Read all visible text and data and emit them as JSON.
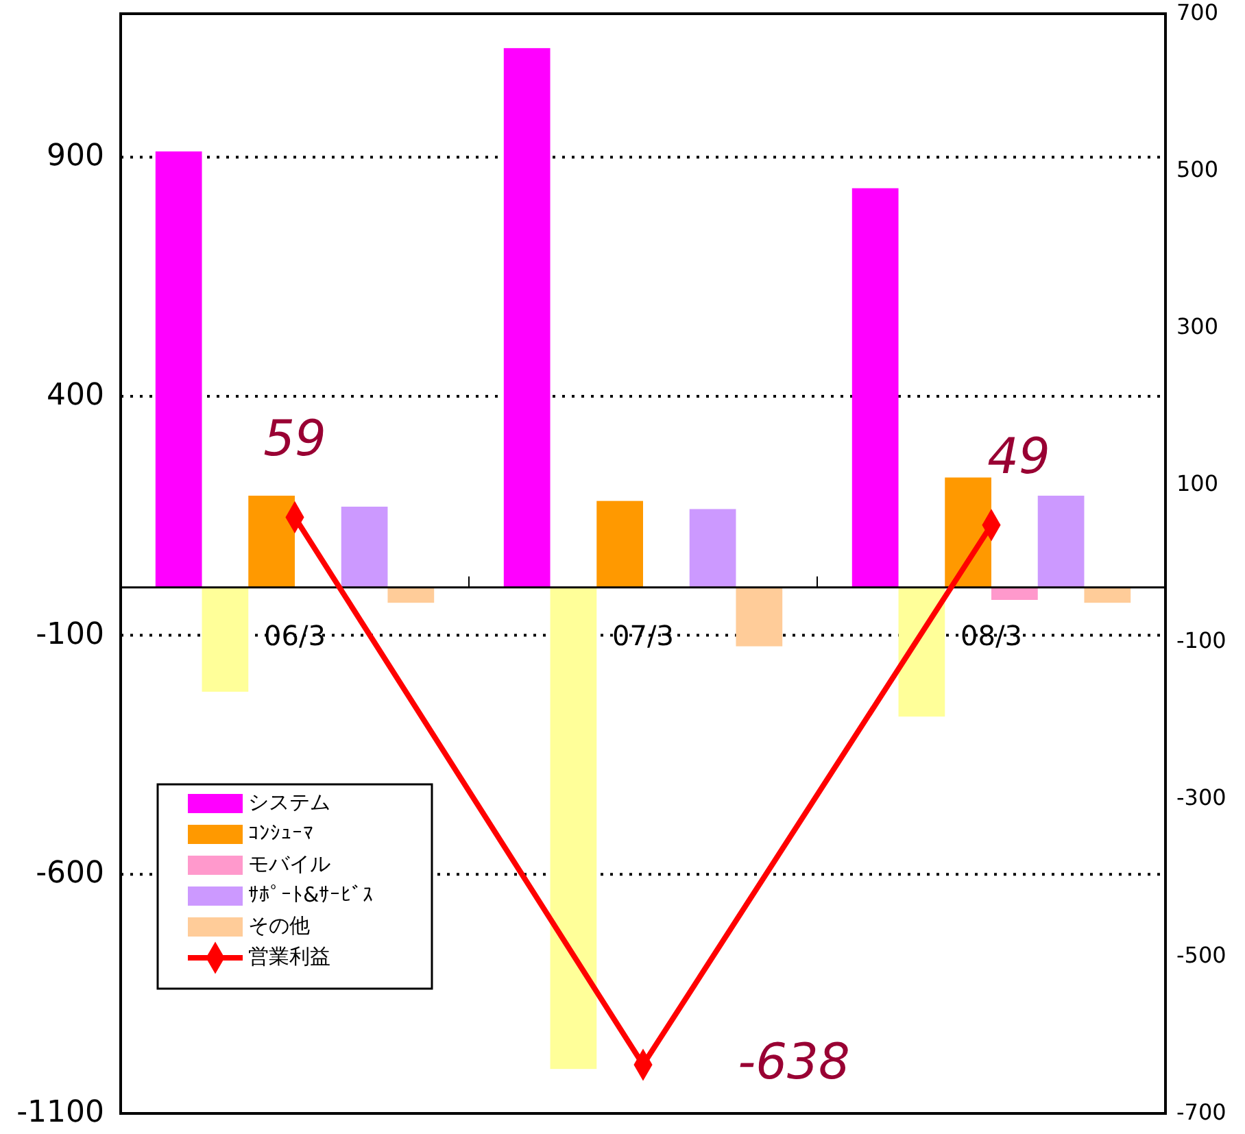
{
  "chart_data": {
    "type": "bar",
    "categories": [
      "06/3",
      "07/3",
      "08/3"
    ],
    "series": [
      {
        "name": "システム",
        "color": "#ff00ff",
        "values": [
          912,
          1128,
          835
        ]
      },
      {
        "color": "#ffff99",
        "values": [
          -218,
          -1007,
          -270
        ]
      },
      {
        "name": "ｺﾝｼｭｰﾏ",
        "color": "#ff9900",
        "values": [
          192,
          181,
          230
        ]
      },
      {
        "name": "モバイル",
        "color": "#ff99cc",
        "values": [
          null,
          null,
          -26
        ]
      },
      {
        "name": "ｻﾎﾟｰﾄ&ｻｰﾋﾞｽ",
        "color": "#cc99ff",
        "values": [
          169,
          164,
          192
        ]
      },
      {
        "name": "その他",
        "color": "#ffcc99",
        "values": [
          -32,
          -123,
          -32
        ]
      },
      {
        "name": "営業利益",
        "type": "line",
        "axis": "y2",
        "color": "#ff0000",
        "marker": "diamond",
        "values": [
          59,
          -638,
          49
        ],
        "value_labels": [
          "59",
          "-638",
          "49"
        ]
      }
    ],
    "ylim": [
      -1100,
      1200
    ],
    "yticks": [
      -1100,
      -600,
      -100,
      400,
      900
    ],
    "y2lim": [
      -700,
      700
    ],
    "y2ticks": [
      -700,
      -500,
      -300,
      -100,
      100,
      300,
      500,
      700
    ],
    "grid": "y",
    "legend": "bottom left"
  }
}
